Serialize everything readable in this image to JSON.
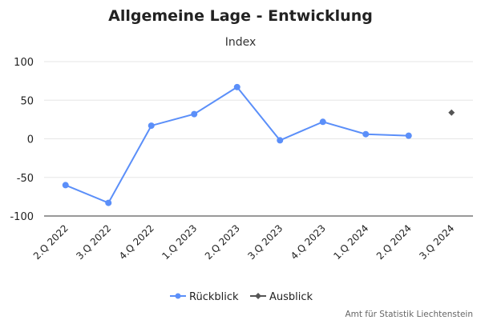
{
  "chart_data": {
    "type": "line",
    "title": "Allgemeine Lage - Entwicklung",
    "subtitle": "Index",
    "categories": [
      "2.Q 2022",
      "3.Q 2022",
      "4.Q 2022",
      "1.Q 2023",
      "2.Q 2023",
      "3.Q 2023",
      "4.Q 2023",
      "1.Q 2024",
      "2.Q 2024",
      "3.Q 2024"
    ],
    "y_ticks": [
      "100",
      "50",
      "0",
      "-50",
      "-100"
    ],
    "ylim": [
      -100,
      100
    ],
    "grid": true,
    "legend_position": "bottom",
    "series": [
      {
        "name": "Rückblick",
        "color": "#5b8ff9",
        "marker": "circle",
        "values": [
          -60,
          -83,
          17,
          32,
          67,
          -2,
          22,
          6,
          4,
          null
        ]
      },
      {
        "name": "Ausblick",
        "color": "#555555",
        "marker": "diamond",
        "values": [
          null,
          null,
          null,
          null,
          null,
          null,
          null,
          null,
          null,
          34
        ]
      }
    ]
  },
  "credit": "Amt für Statistik Liechtenstein"
}
